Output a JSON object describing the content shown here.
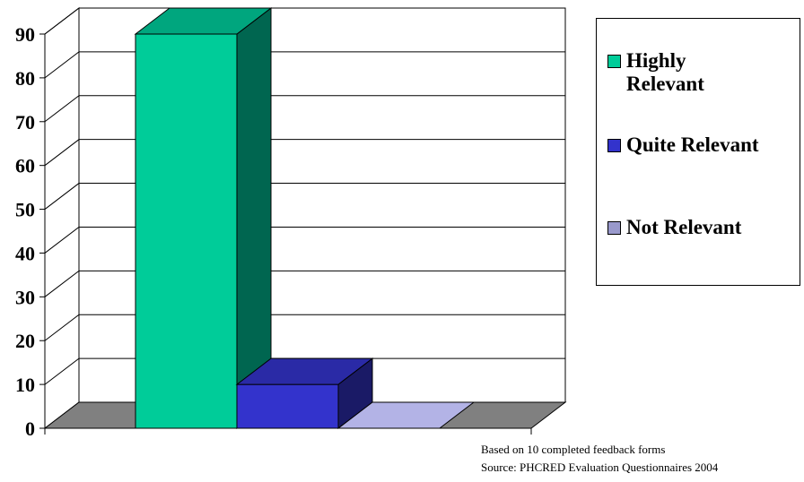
{
  "chart_data": {
    "type": "bar",
    "categories": [
      "Highly Relevant",
      "Quite Relevant",
      "Not Relevant"
    ],
    "values": [
      90,
      10,
      0
    ],
    "ylim": [
      0,
      90
    ],
    "yticks": [
      "0",
      "10",
      "20",
      "30",
      "40",
      "50",
      "60",
      "70",
      "80",
      "90"
    ],
    "grid": true,
    "three_d": true,
    "legend_position": "right",
    "colors": [
      "#00CC99",
      "#3333CC",
      "#9999CC"
    ],
    "side_colors": [
      "#006650",
      "#1A1A66",
      "#4D4D66"
    ],
    "top_colors": [
      "#00A67E",
      "#2A2AA6",
      "#B3B3E6"
    ],
    "floor_color": "#808080"
  },
  "legend": {
    "items": [
      {
        "label": "Highly Relevant",
        "lines": [
          "Highly",
          "Relevant"
        ],
        "color": "#00CC99"
      },
      {
        "label": "Quite Relevant",
        "lines": [
          "Quite Relevant"
        ],
        "color": "#3333CC"
      },
      {
        "label": "Not Relevant",
        "lines": [
          "Not Relevant"
        ],
        "color": "#9999CC"
      }
    ]
  },
  "notes": {
    "line1": "Based on 10 completed feedback forms",
    "line2": "Source: PHCRED Evaluation Questionnaires 2004"
  }
}
